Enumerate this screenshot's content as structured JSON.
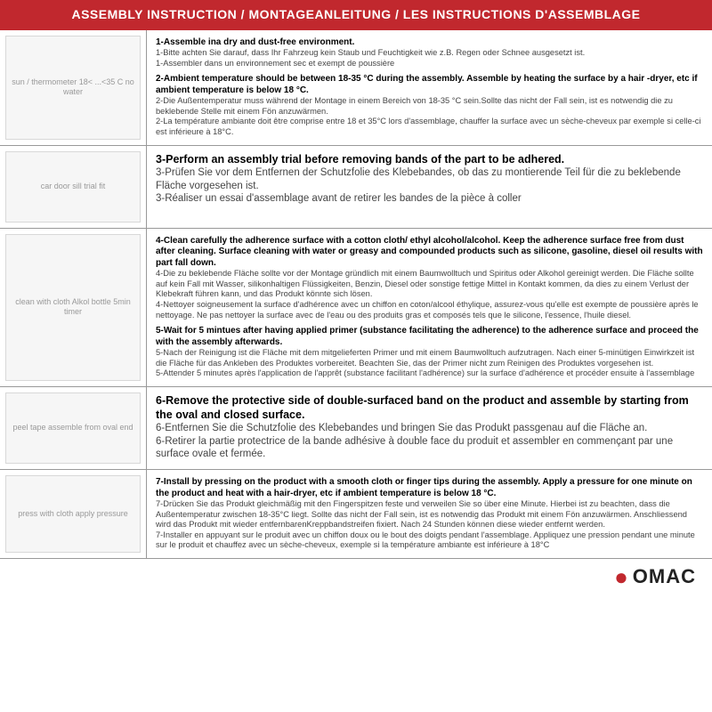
{
  "header": "ASSEMBLY INSTRUCTION / MONTAGEANLEITUNG / LES INSTRUCTIONS D'ASSEMBLAGE",
  "rows": [
    {
      "img_label": "sun / thermometer\n18< ...<35 C\nno water",
      "steps": [
        {
          "en": "1-Assemble ina dry and dust-free environment.",
          "de": "1-Bitte achten Sie darauf, dass Ihr Fahrzeug kein Staub und Feuchtigkeit wie z.B. Regen oder Schnee ausgesetzt ist.",
          "fr": "1-Assembler dans un environnement sec et exempt de poussière"
        },
        {
          "en": "2-Ambient temperature should be between 18-35 °C  during the assembly. Assemble by heating the surface by a hair -dryer, etc if ambient temperature is below 18 °C.",
          "de": "2-Die Außentemperatur muss während der Montage in einem Bereich von 18-35 °C  sein.Sollte das nicht der Fall sein, ist es notwendig die zu beklebende Stelle mit einem Fön anzuwärmen.",
          "fr": "2-La température ambiante doit être comprise entre 18 et 35°C lors d'assemblage, chauffer la surface avec un sèche-cheveux par exemple si celle-ci est inférieure à 18°C."
        }
      ]
    },
    {
      "img_label": "car door sill\ntrial fit",
      "big": true,
      "steps": [
        {
          "en": "3-Perform an assembly trial before removing bands of the part to be adhered.",
          "de": "3-Prüfen Sie vor dem Entfernen der Schutzfolie des Klebebandes, ob das zu montierende Teil für die zu beklebende Fläche vorgesehen ist.",
          "fr": "3-Réaliser un essai d'assemblage avant de retirer les bandes de la pièce à coller"
        }
      ]
    },
    {
      "img_label": "clean with cloth\nAlkol bottle\n5min timer",
      "steps": [
        {
          "en": "4-Clean carefully the adherence surface with a cotton cloth/ ethyl alcohol/alcohol. Keep the adherence surface free from dust after cleaning. Surface cleaning with water or greasy and compounded products such as silicone, gasoline, diesel oil results with part fall down.",
          "de": "4-Die zu beklebende Fläche sollte vor der Montage gründlich mit einem Baumwolltuch und Spiritus oder Alkohol gereinigt werden. Die Fläche sollte auf kein Fall mit Wasser, silikonhaltigen Flüssigkeiten, Benzin, Diesel oder sonstige fettige Mittel in Kontakt kommen, da dies zu einem Verlust der Klebekraft führen kann, und das Produkt könnte sich lösen.",
          "fr": "4-Nettoyer soigneusement la surface d'adhérence avec un chiffon en coton/alcool éthylique, assurez-vous qu'elle est exempte de poussière après le nettoyage. Ne pas nettoyer la surface avec de l'eau ou des produits gras et composés tels que le silicone, l'essence, l'huile diesel."
        },
        {
          "en": "5-Wait for 5 mintues after having applied primer (substance facilitating the adherence) to the adherence surface and proceed the with the assembly afterwards.",
          "de": "5-Nach der Reinigung ist die Fläche mit dem mitgelieferten Primer und mit einem Baumwolltuch aufzutragen. Nach einer 5-minütigen Einwirkzeit ist die Fläche für das Ankleben des Produktes vorbereitet. Beachten Sie, das der Primer nicht zum Reinigen des Produktes vorgesehen ist.",
          "fr": "5-Attender 5 minutes après l'application de l'apprêt (substance facilitant l'adhérence) sur la surface d'adhérence et procéder ensuite à l'assemblage"
        }
      ]
    },
    {
      "img_label": "peel tape\nassemble from oval end",
      "big": true,
      "steps": [
        {
          "en": "6-Remove the protective side of double-surfaced band on the product and assemble by starting from the oval and closed surface.",
          "de": "6-Entfernen Sie die Schutzfolie des Klebebandes und bringen Sie das Produkt passgenau auf die Fläche an.",
          "fr": "6-Retirer la partie protectrice de la bande adhésive à double face du produit et assembler en commençant par une surface ovale et fermée."
        }
      ]
    },
    {
      "img_label": "press with cloth\napply pressure",
      "steps": [
        {
          "en": "7-Install by pressing on the product with a smooth cloth or finger tips during the assembly. Apply a pressure for one minute on the product and heat with a hair-dryer, etc if ambient temperature is below 18 °C.",
          "de": "7-Drücken Sie das Produkt gleichmäßig mit den Fingerspitzen feste und verweilen Sie so über eine Minute. Hierbei ist zu beachten, dass die Außentemperatur zwischen 18-35°C liegt. Sollte das nicht der Fall sein, ist es notwendig das Produkt mit einem Fön anzuwärmen. Anschliessend wird das Produkt mit wieder entfernbarenKreppbandstreifen fixiert. Nach 24 Stunden können diese wieder entfernt werden.",
          "fr": "7-Installer en appuyant sur le produit avec un chiffon doux ou le bout des doigts pendant l'assemblage. Appliquez une pression pendant une minute sur le produit et chauffez avec un sèche-cheveux, exemple si la température ambiante est inférieure à 18°C"
        }
      ]
    }
  ],
  "logo": "OMAC",
  "colors": {
    "header_bg": "#c1282e",
    "logo_accent": "#c1282e"
  },
  "header_fontsize": 14
}
